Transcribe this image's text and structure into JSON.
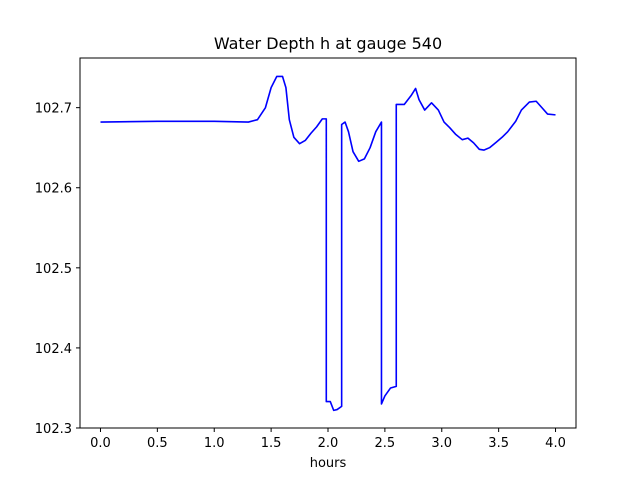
{
  "chart_data": {
    "type": "line",
    "title": "Water Depth h at gauge 540",
    "xlabel": "hours",
    "ylabel": "",
    "xlim": [
      -0.18,
      4.18
    ],
    "ylim": [
      102.3,
      102.762
    ],
    "xticks": [
      0.0,
      0.5,
      1.0,
      1.5,
      2.0,
      2.5,
      3.0,
      3.5,
      4.0
    ],
    "xtick_labels": [
      "0.0",
      "0.5",
      "1.0",
      "1.5",
      "2.0",
      "2.5",
      "3.0",
      "3.5",
      "4.0"
    ],
    "yticks": [
      102.3,
      102.4,
      102.5,
      102.6,
      102.7
    ],
    "ytick_labels": [
      "102.3",
      "102.4",
      "102.5",
      "102.6",
      "102.7"
    ],
    "grid": false,
    "series": [
      {
        "color": "#0000ff",
        "x": [
          0.0,
          0.5,
          1.0,
          1.3,
          1.38,
          1.45,
          1.5,
          1.55,
          1.6,
          1.63,
          1.66,
          1.7,
          1.75,
          1.8,
          1.85,
          1.9,
          1.95,
          1.985,
          1.985,
          2.02,
          2.05,
          2.08,
          2.12,
          2.12,
          2.15,
          2.18,
          2.22,
          2.27,
          2.32,
          2.37,
          2.42,
          2.47,
          2.47,
          2.5,
          2.55,
          2.6,
          2.6,
          2.67,
          2.73,
          2.77,
          2.8,
          2.85,
          2.91,
          2.97,
          3.02,
          3.07,
          3.12,
          3.18,
          3.23,
          3.28,
          3.33,
          3.37,
          3.42,
          3.48,
          3.53,
          3.58,
          3.65,
          3.7,
          3.77,
          3.83,
          3.88,
          3.93,
          4.0
        ],
        "y": [
          102.682,
          102.683,
          102.683,
          102.682,
          102.685,
          102.7,
          102.725,
          102.739,
          102.739,
          102.725,
          102.685,
          102.663,
          102.655,
          102.659,
          102.668,
          102.676,
          102.686,
          102.686,
          102.333,
          102.333,
          102.322,
          102.323,
          102.327,
          102.679,
          102.682,
          102.67,
          102.645,
          102.633,
          102.636,
          102.65,
          102.67,
          102.682,
          102.33,
          102.34,
          102.35,
          102.352,
          102.704,
          102.704,
          102.715,
          102.724,
          102.71,
          102.697,
          102.706,
          102.697,
          102.682,
          102.675,
          102.667,
          102.66,
          102.662,
          102.656,
          102.648,
          102.647,
          102.65,
          102.657,
          102.663,
          102.67,
          102.683,
          102.697,
          102.707,
          102.708,
          102.7,
          102.692,
          102.691
        ]
      }
    ]
  }
}
